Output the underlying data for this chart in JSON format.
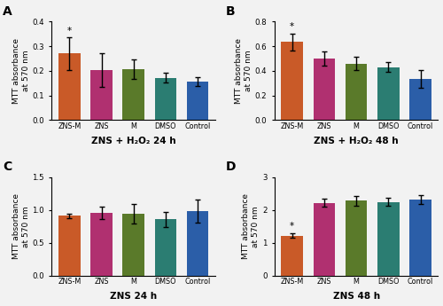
{
  "panels": [
    {
      "label": "A",
      "title": "ZNS + H₂O₂ 24 h",
      "ylabel": "MTT absorbance\nat 570 nm",
      "ylim": [
        0,
        0.4
      ],
      "yticks": [
        0.0,
        0.1,
        0.2,
        0.3,
        0.4
      ],
      "categories": [
        "ZNS-M",
        "ZNS",
        "M",
        "DMSO",
        "Control"
      ],
      "values": [
        0.27,
        0.202,
        0.206,
        0.172,
        0.155
      ],
      "errors": [
        0.065,
        0.068,
        0.04,
        0.02,
        0.018
      ],
      "star_idx": 0,
      "colors": [
        "#C95A28",
        "#B03070",
        "#5A7A2A",
        "#2B7D72",
        "#2B5EA8"
      ]
    },
    {
      "label": "B",
      "title": "ZNS + H₂O₂ 48 h",
      "ylabel": "MTT absorbance\nat 570 nm",
      "ylim": [
        0,
        0.8
      ],
      "yticks": [
        0.0,
        0.2,
        0.4,
        0.6,
        0.8
      ],
      "categories": [
        "ZNS-M",
        "ZNS",
        "M",
        "DMSO",
        "Control"
      ],
      "values": [
        0.635,
        0.5,
        0.46,
        0.43,
        0.335
      ],
      "errors": [
        0.068,
        0.06,
        0.055,
        0.04,
        0.075
      ],
      "star_idx": 0,
      "colors": [
        "#C95A28",
        "#B03070",
        "#5A7A2A",
        "#2B7D72",
        "#2B5EA8"
      ]
    },
    {
      "label": "C",
      "title": "ZNS 24 h",
      "ylabel": "MTT absorbance\nat 570 nm",
      "ylim": [
        0,
        1.5
      ],
      "yticks": [
        0.0,
        0.5,
        1.0,
        1.5
      ],
      "categories": [
        "ZNS-M",
        "ZNS",
        "M",
        "DMSO",
        "Control"
      ],
      "values": [
        0.91,
        0.95,
        0.94,
        0.855,
        0.98
      ],
      "errors": [
        0.03,
        0.095,
        0.15,
        0.12,
        0.18
      ],
      "star_idx": -1,
      "colors": [
        "#C95A28",
        "#B03070",
        "#5A7A2A",
        "#2B7D72",
        "#2B5EA8"
      ]
    },
    {
      "label": "D",
      "title": "ZNS 48 h",
      "ylabel": "MTT absorbance\nat 570 nm",
      "ylim": [
        0,
        3.0
      ],
      "yticks": [
        0.0,
        1.0,
        2.0,
        3.0
      ],
      "categories": [
        "ZNS-M",
        "ZNS",
        "M",
        "DMSO",
        "Control"
      ],
      "values": [
        1.22,
        2.22,
        2.28,
        2.24,
        2.32
      ],
      "errors": [
        0.07,
        0.12,
        0.14,
        0.12,
        0.13
      ],
      "star_idx": 0,
      "colors": [
        "#C95A28",
        "#B03070",
        "#5A7A2A",
        "#2B7D72",
        "#2B5EA8"
      ]
    }
  ],
  "figure_bg": "#F2F2F2",
  "axes_bg": "#F2F2F2",
  "bar_width": 0.68,
  "capsize": 2.5,
  "elinewidth": 1.0,
  "ecapthick": 1.0
}
